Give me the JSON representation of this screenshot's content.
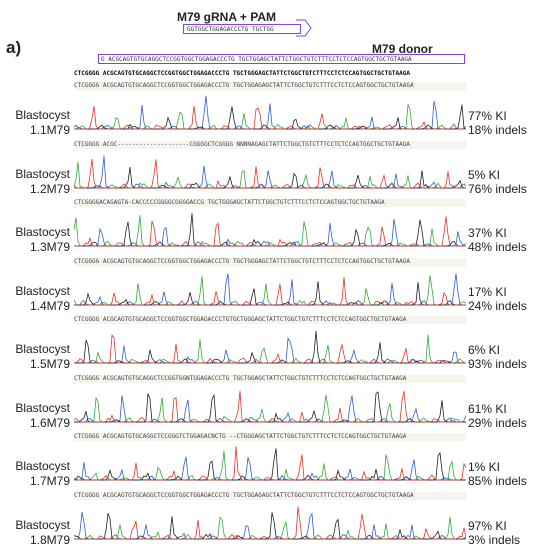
{
  "panel_label": "a)",
  "guide": {
    "title": "M79 gRNA + PAM",
    "sequence": "GGTGGCTGGAGACCCTG TGCTGG"
  },
  "donor": {
    "title": "M79 donor",
    "sequence": "G ACGCAGTGTGCAGGCTCCGGTGGCTGGAGACCCTG TGCTGGAGCTATTCTGGCTGTCTTTCCTCTCCAGTGGCTGCTGTAAGA"
  },
  "reference": "CTCGGGG ACGCAGTGTGCAGGCTCCGGTGGCTGGAGACCCTG TGCTGGGAGCTATTCTGGCTGTCTTTCCTCTCCAGTGGCTGCTGTAAGA",
  "colors": {
    "A": "#3aa83a",
    "C": "#2f5fd0",
    "G": "#222222",
    "T": "#e0352b",
    "box": "#8a3fd6",
    "highlight": "#f08080"
  },
  "samples": [
    {
      "line1": "Blastocyst",
      "line2": "1.1M79",
      "ki": "77% KI",
      "indels": "18% indels",
      "seq": "CTCGGGG ACGCAGTGTGCAGGCTCCGGTGGCTGGAGACCCTG TGCTGGAGAGCTATTCTGGCTGTCTTTCCTCTCCAGTGGCTGCTGTAAGA"
    },
    {
      "line1": "Blastocyst",
      "line2": "1.2M79",
      "ki": "5% KI",
      "indels": "76% indels",
      "seq": "CTCGGGG ACGC--------------------CGGGGCTCGGGG NNNNAGAGCTATTCTGGCTGTCTTTCCTCTCCAGTGGCTGCTGTAAGA"
    },
    {
      "line1": "Blastocyst",
      "line2": "1.3M79",
      "ki": "37% KI",
      "indels": "48% indels",
      "seq": "CTCGGGGACAGAGTA-CACCCCCGGGGCGGGGACCG TGCTGGGAGCTATTCTGGCTGTCTTTCCTCTCCAGTGGCTGCTGTAAGA"
    },
    {
      "line1": "Blastocyst",
      "line2": "1.4M79",
      "ki": "17% KI",
      "indels": "24% indels",
      "seq": "CTCGGGG ACGCAGTGTGCAGGCTCCGGTGGCTGGAGACCCTG TGCTGGGAGCTATTCTGGCTGTCTTTCCTCTCCAGTGGCTGCTGTAAGA"
    },
    {
      "line1": "Blastocyst",
      "line2": "1.5M79",
      "ki": "6% KI",
      "indels": "93% indels",
      "seq": "CTCGGGG ACGCAGTGTGCAGGCTCCGGTGGCTGGAGACCCTGTGCTGGGAGCTATTCTGGCTGTCTTTCCTCTCCAGTGGCTGCTGTAAGA"
    },
    {
      "line1": "Blastocyst",
      "line2": "1.6M79",
      "ki": "61% KI",
      "indels": "29% indels",
      "seq": "CTCGGGG ACGCAGTGTGCAGGCTCCGGTGGNTGGAGACCCTG TGCTGGAGCTATTCTGGCTGTCTTTCCTCTCCAGTGGCTGCTGTAAGA"
    },
    {
      "line1": "Blastocyst",
      "line2": "1.7M79",
      "ki": "1% KI",
      "indels": "85% indels",
      "seq": "CTCGGGG ACGCAGTGTGCAGGCTCCGGGTCTGGAGACNCTG --CTGGGAGCTATTCTGGCTGTCTTTCCTCTCCAGTGGCTGCTGTAAGA"
    },
    {
      "line1": "Blastocyst",
      "line2": "1.8M79",
      "ki": "97% KI",
      "indels": "3% indels",
      "seq": "CTCGGGG ACGCAGTGTGCAGGCTCCGGTGGCTGGAGACCCTG TGCTGGAGAGCTATTCTGGCTGTCTTTCCTCTCCAGTGGCTGCTGTAAGA"
    }
  ]
}
